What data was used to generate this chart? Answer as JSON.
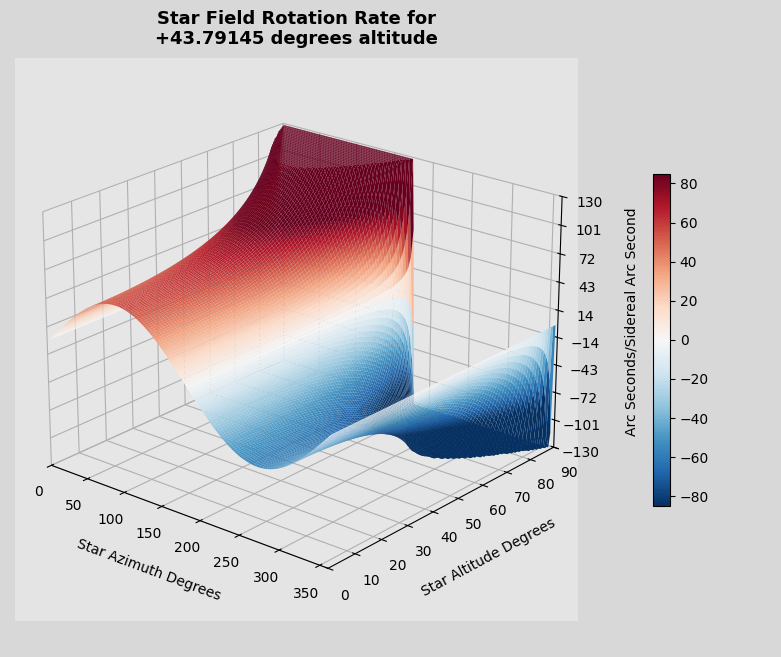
{
  "title": "Star Field Rotation Rate for\n+43.79145 degrees altitude",
  "xlabel": "Star Azimuth Degrees",
  "ylabel": "Star Altitude Degrees",
  "zlabel": "Arc Seconds/Sidereal Arc Second",
  "latitude_deg": 43.79145,
  "azimuth_range": [
    0,
    360
  ],
  "altitude_range": [
    1,
    89
  ],
  "z_ticks": [
    -130,
    -101,
    -72,
    -43,
    -14,
    14,
    43,
    72,
    101,
    130
  ],
  "colorbar_ticks": [
    -80,
    -60,
    -40,
    -20,
    0,
    20,
    40,
    60,
    80
  ],
  "clim": [
    -85,
    85
  ],
  "colormap": "RdBu_r",
  "elev": 22,
  "azim": -50,
  "figsize": [
    7.81,
    6.57
  ],
  "dpi": 100,
  "scale": 3.14
}
